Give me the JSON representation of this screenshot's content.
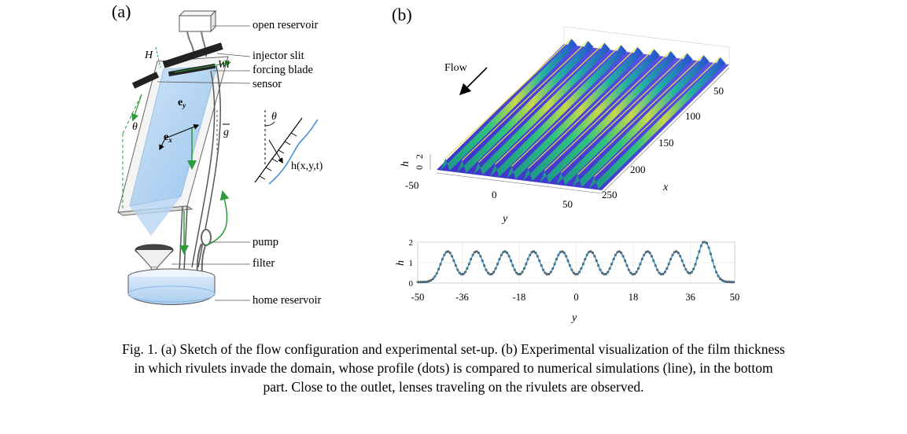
{
  "panel_a": {
    "label": "(a)",
    "callouts": [
      "open reservoir",
      "injector slit",
      "forcing blade",
      "sensor",
      "pump",
      "filter",
      "home reservoir"
    ],
    "symbols": {
      "H": "H",
      "Wi": "Wi",
      "ey": "e",
      "ey_sub": "y",
      "ex": "e",
      "ex_sub": "x",
      "theta1": "θ",
      "g": "g",
      "theta2": "θ",
      "h": "h(x,y,t)"
    }
  },
  "panel_b": {
    "label": "(b)",
    "flow_label": "Flow",
    "surface": {
      "h_label": "h",
      "h_ticks": [
        "2",
        "0"
      ],
      "y_ticks": [
        "-50",
        "0",
        "50"
      ],
      "y_label": "y",
      "x_ticks": [
        "50",
        "100",
        "150",
        "200",
        "250"
      ],
      "x_label": "x",
      "rivulet_count": 10
    }
  },
  "chart_data": {
    "type": "line",
    "xlabel": "y",
    "ylabel": "h",
    "xlim": [
      -50,
      50
    ],
    "ylim": [
      0,
      2
    ],
    "x_ticks": [
      -50,
      -36,
      -18,
      0,
      18,
      36,
      50
    ],
    "y_ticks": [
      0,
      1,
      2
    ],
    "grid": true,
    "rivulet_centers": [
      -40.5,
      -31.5,
      -22.5,
      -13.5,
      -4.5,
      4.5,
      13.5,
      22.5,
      31.5,
      40.5
    ],
    "rivulet_peak": 1.5,
    "lens_peak": 2.0,
    "base_thickness": 0.05,
    "series": [
      {
        "style": "dots",
        "color": "#333333"
      },
      {
        "style": "line",
        "color": "#4aa3d8"
      }
    ]
  },
  "caption": {
    "line1": "Fig. 1. (a) Sketch of the flow configuration and experimental set-up. (b) Experimental visualization of the film thickness",
    "line2": "in which rivulets invade the domain, whose profile (dots) is compared to numerical simulations (line), in the bottom",
    "line3": "part. Close to the outlet, lenses traveling on the rivulets are observed."
  }
}
